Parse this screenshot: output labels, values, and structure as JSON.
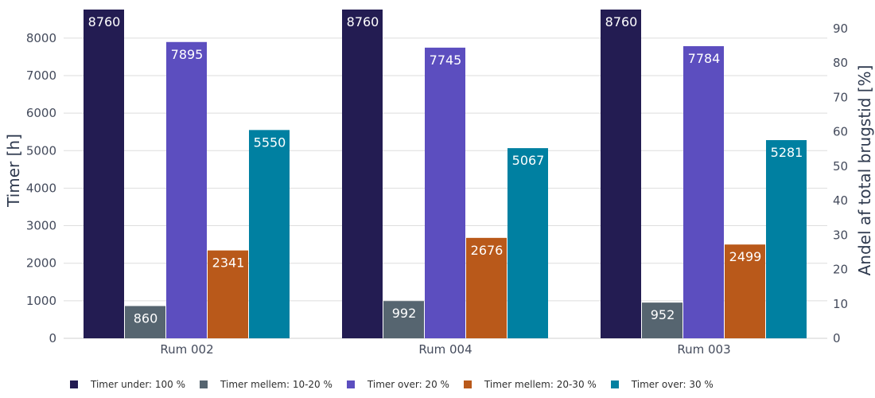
{
  "chart_data": {
    "type": "bar",
    "categories": [
      "Rum 002",
      "Rum 004",
      "Rum 003"
    ],
    "series": [
      {
        "name": "Timer under: 100 %",
        "color": "#231c52",
        "values": [
          8760,
          8760,
          8760
        ]
      },
      {
        "name": "Timer mellem: 10-20 %",
        "color": "#566570",
        "values": [
          860,
          992,
          952
        ]
      },
      {
        "name": "Timer over: 20 %",
        "color": "#5c4ebf",
        "values": [
          7895,
          7745,
          7784
        ]
      },
      {
        "name": "Timer mellem: 20-30 %",
        "color": "#b9591a",
        "values": [
          2341,
          2676,
          2499
        ]
      },
      {
        "name": "Timer over: 30 %",
        "color": "#0080a1",
        "values": [
          5550,
          5067,
          5281
        ]
      }
    ],
    "ylabel": "Timer [h]",
    "y2label": "Andel af total brugstid [%]",
    "ylim": [
      0,
      8760
    ],
    "yticks": [
      0,
      1000,
      2000,
      3000,
      4000,
      5000,
      6000,
      7000,
      8000
    ],
    "y2lim": [
      0,
      100
    ],
    "y2ticks": [
      0,
      10,
      20,
      30,
      40,
      50,
      60,
      70,
      80,
      90
    ],
    "grid": true,
    "legend_position": "bottom"
  }
}
